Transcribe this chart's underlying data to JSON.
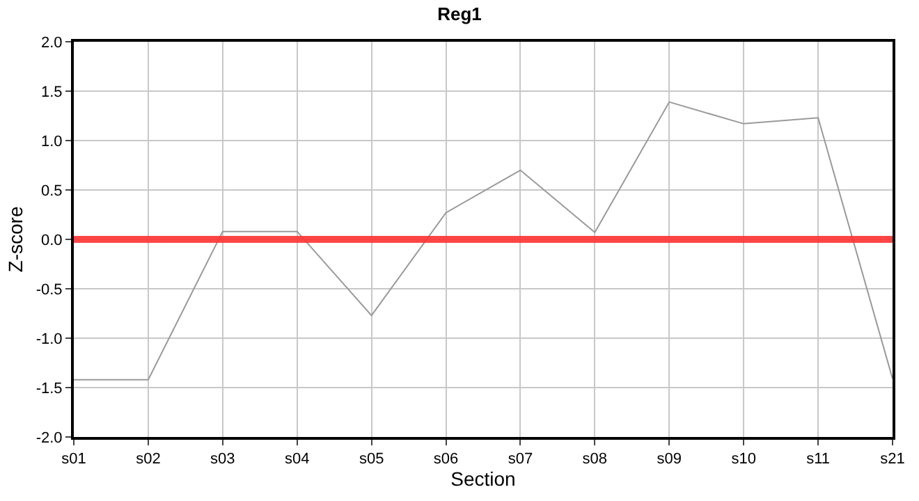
{
  "chart_data": {
    "type": "line",
    "title": "Reg1",
    "xlabel": "Section",
    "ylabel": "Z-score",
    "categories": [
      "s01",
      "s02",
      "s03",
      "s04",
      "s05",
      "s06",
      "s07",
      "s08",
      "s09",
      "s10",
      "s11",
      "s21"
    ],
    "series": [
      {
        "color": "#999999",
        "values": [
          -1.42,
          -1.42,
          0.08,
          0.08,
          -0.77,
          0.27,
          0.7,
          0.07,
          1.39,
          1.17,
          1.23,
          -1.41
        ]
      }
    ],
    "ylim": [
      -2.0,
      2.0
    ],
    "yticks": [
      {
        "value": -2,
        "label": "-2.0"
      },
      {
        "value": -1.5,
        "label": "-1.5"
      },
      {
        "value": -1,
        "label": "-1.0"
      },
      {
        "value": -0.5,
        "label": "-0.5"
      },
      {
        "value": 0,
        "label": "0.0"
      },
      {
        "value": 0.5,
        "label": "0.5"
      },
      {
        "value": 1,
        "label": "1.0"
      },
      {
        "value": 1.5,
        "label": "1.5"
      },
      {
        "value": 2,
        "label": "2.0"
      }
    ],
    "ref_lines": [
      {
        "axis": "y",
        "value": 0,
        "color": "#ff3333"
      }
    ],
    "grid": true,
    "marker": "none",
    "line_style": "solid"
  }
}
